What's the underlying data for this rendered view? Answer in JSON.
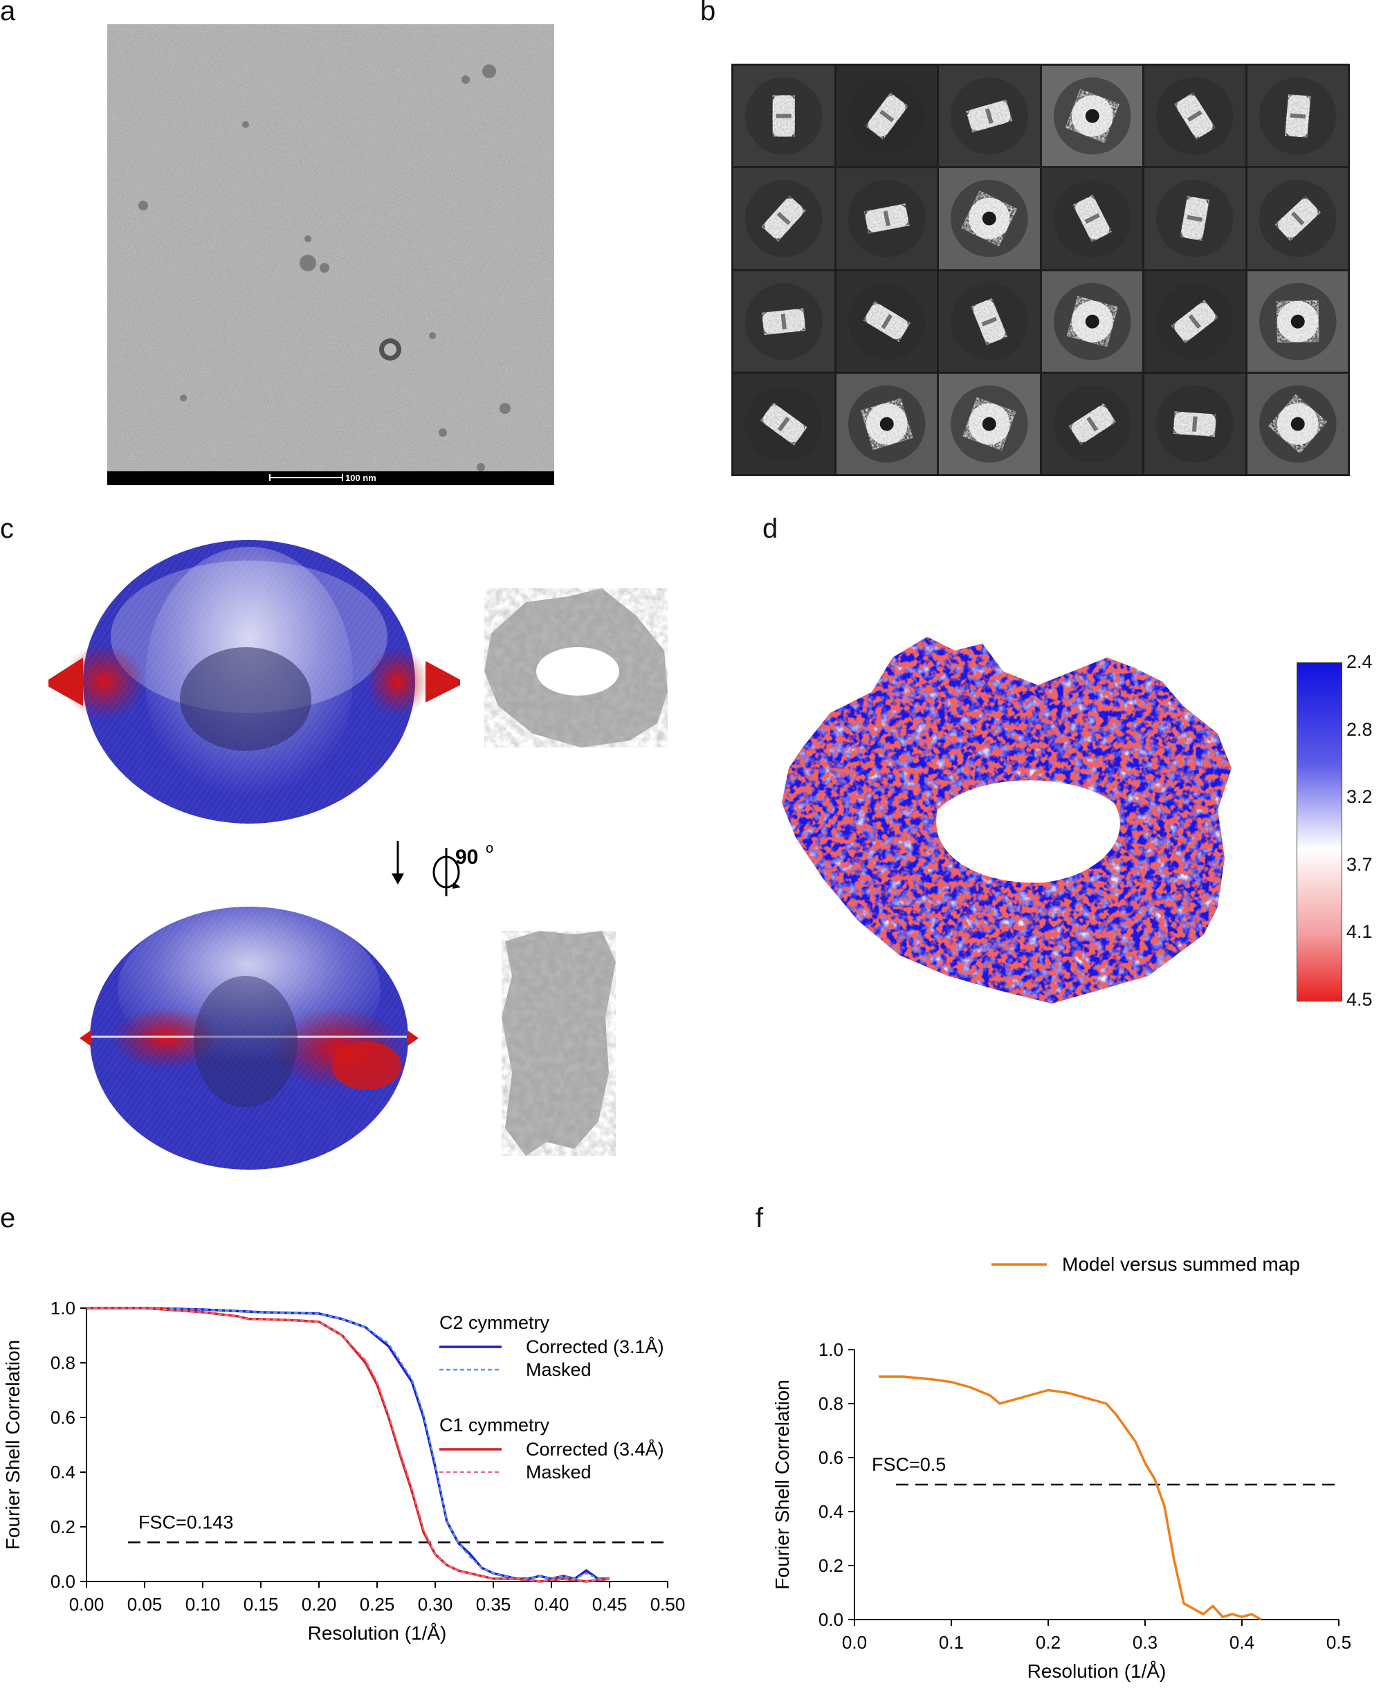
{
  "panels": {
    "a": "a",
    "b": "b",
    "c": "c",
    "d": "d",
    "e": "e",
    "f": "f"
  },
  "panel_a": {
    "scale_bar_label": "100 nm"
  },
  "panel_b": {
    "tile_backgrounds": [
      [
        "#3c3c3c",
        "#2c2c2c",
        "#3a3a3a",
        "#6a6a6a",
        "#363636",
        "#3a3a3a"
      ],
      [
        "#3b3b3b",
        "#363636",
        "#606060",
        "#333333",
        "#3a3a3a",
        "#3c3c3c"
      ],
      [
        "#3a3a3a",
        "#303030",
        "#333333",
        "#5e5e5e",
        "#2f2f2f",
        "#606060"
      ],
      [
        "#2f2f2f",
        "#5a5a5a",
        "#666666",
        "#333333",
        "#363636",
        "#5a5a5a"
      ]
    ],
    "tile_kinds": [
      [
        "side",
        "side",
        "side",
        "top",
        "side",
        "side"
      ],
      [
        "side",
        "side",
        "top",
        "side",
        "side",
        "side"
      ],
      [
        "side",
        "side",
        "side",
        "top",
        "side",
        "top"
      ],
      [
        "side",
        "top",
        "top",
        "side",
        "side",
        "top"
      ]
    ]
  },
  "panel_c": {
    "rotation_label": "90",
    "degree_symbol": "o"
  },
  "panel_d": {
    "colorbar_ticks": [
      "2.4",
      "2.8",
      "3.2",
      "3.7",
      "4.1",
      "4.5"
    ],
    "colors": {
      "low": "#1010e0",
      "mid": "#ffffff",
      "high": "#e82020"
    }
  },
  "chart_data": [
    {
      "panel": "e",
      "type": "line",
      "xlabel": "Resolution (1/Å)",
      "ylabel": "Fourier Shell Correlation",
      "xlim": [
        0.0,
        0.5
      ],
      "ylim": [
        0.0,
        1.0
      ],
      "xticks": [
        "0.00",
        "0.05",
        "0.10",
        "0.15",
        "0.20",
        "0.25",
        "0.30",
        "0.35",
        "0.40",
        "0.45",
        "0.50"
      ],
      "yticks": [
        "0.0",
        "0.2",
        "0.4",
        "0.6",
        "0.8",
        "1.0"
      ],
      "threshold": {
        "value": 0.143,
        "label": "FSC=0.143"
      },
      "legend_groups": [
        "C2 cymmetry",
        "C1 cymmetry"
      ],
      "series": [
        {
          "name": "Corrected (3.1Å)",
          "group": 0,
          "color": "#1f1fc8",
          "dashed": false,
          "x": [
            0,
            0.05,
            0.1,
            0.15,
            0.2,
            0.22,
            0.24,
            0.26,
            0.28,
            0.29,
            0.3,
            0.31,
            0.32,
            0.33,
            0.34,
            0.35,
            0.36,
            0.37,
            0.38,
            0.39,
            0.4,
            0.41,
            0.42,
            0.43,
            0.44,
            0.45
          ],
          "y": [
            1.0,
            1.0,
            0.995,
            0.985,
            0.98,
            0.96,
            0.93,
            0.86,
            0.73,
            0.6,
            0.42,
            0.22,
            0.14,
            0.1,
            0.05,
            0.03,
            0.02,
            0.01,
            0.01,
            0.02,
            0.01,
            0.02,
            0.01,
            0.04,
            0.01,
            0.01
          ]
        },
        {
          "name": "Masked",
          "group": 0,
          "color": "#5a9ae6",
          "dashed": true,
          "x": [
            0,
            0.05,
            0.1,
            0.15,
            0.2,
            0.22,
            0.24,
            0.26,
            0.28,
            0.29,
            0.3,
            0.31,
            0.32,
            0.33,
            0.34,
            0.35,
            0.36,
            0.37,
            0.38,
            0.39,
            0.4,
            0.41,
            0.42,
            0.43,
            0.44,
            0.45
          ],
          "y": [
            1.0,
            1.0,
            0.995,
            0.985,
            0.98,
            0.96,
            0.93,
            0.87,
            0.74,
            0.61,
            0.43,
            0.22,
            0.14,
            0.09,
            0.05,
            0.03,
            0.02,
            0.01,
            0.01,
            0.02,
            0.01,
            0.02,
            0.01,
            0.03,
            0.01,
            0.01
          ]
        },
        {
          "name": "Corrected (3.4Å)",
          "group": 1,
          "color": "#d62020",
          "dashed": false,
          "x": [
            0,
            0.05,
            0.1,
            0.13,
            0.14,
            0.15,
            0.18,
            0.2,
            0.22,
            0.24,
            0.25,
            0.26,
            0.27,
            0.28,
            0.29,
            0.3,
            0.31,
            0.32,
            0.33,
            0.34,
            0.35,
            0.37,
            0.39,
            0.41,
            0.43,
            0.45
          ],
          "y": [
            1.0,
            1.0,
            0.985,
            0.97,
            0.96,
            0.96,
            0.955,
            0.95,
            0.9,
            0.8,
            0.72,
            0.6,
            0.46,
            0.33,
            0.18,
            0.1,
            0.06,
            0.04,
            0.03,
            0.02,
            0.01,
            0.01,
            0.0,
            0.01,
            0.0,
            0.01
          ]
        },
        {
          "name": "Masked",
          "group": 1,
          "color": "#e0708a",
          "dashed": true,
          "x": [
            0,
            0.05,
            0.1,
            0.13,
            0.14,
            0.15,
            0.18,
            0.2,
            0.22,
            0.24,
            0.25,
            0.26,
            0.27,
            0.28,
            0.29,
            0.3,
            0.31,
            0.32,
            0.33,
            0.34,
            0.35,
            0.37,
            0.39,
            0.41,
            0.43,
            0.45
          ],
          "y": [
            1.0,
            1.0,
            0.985,
            0.97,
            0.96,
            0.96,
            0.955,
            0.95,
            0.9,
            0.81,
            0.73,
            0.61,
            0.47,
            0.34,
            0.19,
            0.1,
            0.06,
            0.04,
            0.03,
            0.02,
            0.01,
            0.01,
            0.0,
            0.01,
            0.0,
            0.01
          ]
        }
      ]
    },
    {
      "panel": "f",
      "type": "line",
      "xlabel": "Resolution (1/Å)",
      "ylabel": "Fourier Shell Correlation",
      "xlim": [
        0.0,
        0.5
      ],
      "ylim": [
        0.0,
        1.0
      ],
      "xticks": [
        "0.0",
        "0.1",
        "0.2",
        "0.3",
        "0.4",
        "0.5"
      ],
      "yticks": [
        "0.0",
        "0.2",
        "0.4",
        "0.6",
        "0.8",
        "1.0"
      ],
      "threshold": {
        "value": 0.5,
        "label": "FSC=0.5"
      },
      "series": [
        {
          "name": "Model versus summed map",
          "color": "#ee7f18",
          "dashed": false,
          "x": [
            0.025,
            0.05,
            0.08,
            0.1,
            0.12,
            0.14,
            0.15,
            0.17,
            0.19,
            0.2,
            0.22,
            0.24,
            0.26,
            0.27,
            0.28,
            0.29,
            0.3,
            0.31,
            0.32,
            0.33,
            0.34,
            0.35,
            0.36,
            0.37,
            0.38,
            0.39,
            0.4,
            0.41,
            0.42
          ],
          "y": [
            0.9,
            0.9,
            0.89,
            0.88,
            0.86,
            0.83,
            0.8,
            0.82,
            0.84,
            0.85,
            0.84,
            0.82,
            0.8,
            0.76,
            0.71,
            0.66,
            0.58,
            0.52,
            0.42,
            0.22,
            0.06,
            0.04,
            0.02,
            0.05,
            0.01,
            0.02,
            0.01,
            0.02,
            0.0
          ]
        }
      ]
    }
  ]
}
